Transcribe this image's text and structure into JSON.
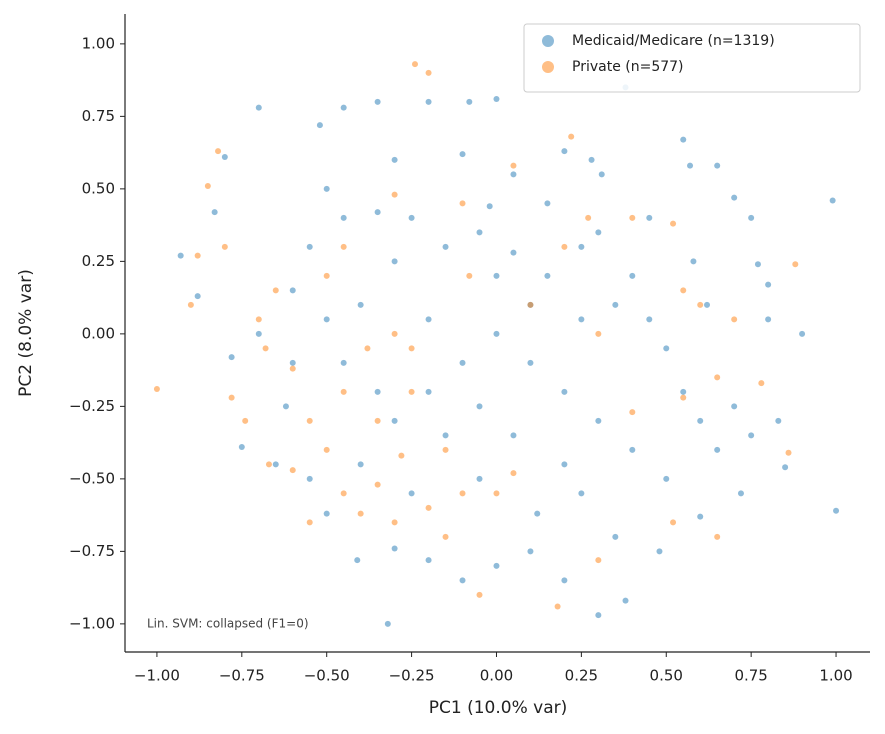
{
  "chart_data": {
    "type": "scatter",
    "xlabel": "PC1 (10.0% var)",
    "ylabel": "PC2 (8.0% var)",
    "annotation": "Lin. SVM: collapsed (F1=0)",
    "xlim": [
      -1.094,
      1.1
    ],
    "ylim": [
      -1.097,
      1.103
    ],
    "xticks": [
      {
        "value": -1,
        "label": "−1.00"
      },
      {
        "value": -0.75,
        "label": "−0.75"
      },
      {
        "value": -0.5,
        "label": "−0.50"
      },
      {
        "value": -0.25,
        "label": "−0.25"
      },
      {
        "value": 0,
        "label": "0.00"
      },
      0.25,
      {
        "value": 0.5,
        "label": "0.50"
      },
      0.75,
      {
        "value": 1,
        "label": "1.00"
      }
    ],
    "yticks": [
      {
        "value": -1,
        "label": "−1.00"
      },
      {
        "value": -0.75,
        "label": "−0.75"
      },
      {
        "value": -0.5,
        "label": "−0.50"
      },
      {
        "value": -0.25,
        "label": "−0.25"
      },
      {
        "value": 0,
        "label": "0.00"
      },
      0.25,
      {
        "value": 0.5,
        "label": "0.50"
      },
      0.75,
      {
        "value": 1,
        "label": "1.00"
      }
    ],
    "legend": "upper right",
    "series": [
      {
        "name": "Medicaid/Medicare (n=1319)",
        "color": "#1f77b4",
        "x": [
          0.99,
          1.0,
          0.85,
          0.77,
          0.8,
          0.75,
          0.7,
          0.65,
          0.57,
          0.55,
          0.38,
          0.31,
          0.28,
          0.2,
          0.0,
          -0.08,
          -0.2,
          -0.35,
          -0.45,
          -0.52,
          -0.7,
          -0.8,
          -0.83,
          -0.88,
          -0.93,
          -0.78,
          -0.75,
          -0.6,
          -0.55,
          -0.45,
          -0.35,
          -0.25,
          -0.15,
          -0.05,
          0.05,
          0.15,
          0.25,
          0.35,
          0.45,
          0.5,
          0.55,
          0.6,
          0.65,
          0.7,
          0.72,
          0.6,
          0.48,
          0.38,
          0.3,
          0.2,
          0.1,
          0.0,
          -0.1,
          -0.2,
          -0.3,
          -0.41,
          -0.5,
          -0.55,
          -0.65,
          -0.4,
          -0.3,
          -0.2,
          -0.1,
          0.0,
          0.1,
          0.2,
          0.3,
          0.4,
          0.15,
          0.05,
          -0.1,
          -0.3,
          -0.5,
          -0.6,
          -0.4,
          -0.2,
          0.1,
          0.3,
          0.45,
          0.58,
          0.62,
          0.8,
          0.9,
          0.75,
          0.83,
          0.5,
          0.25,
          -0.05,
          -0.25,
          -0.35,
          -0.45,
          -0.5,
          -0.15,
          0.05,
          0.2,
          0.35,
          -0.62,
          -0.7,
          0.4,
          0.0,
          -0.3,
          -0.05,
          0.12,
          -0.02,
          0.25,
          -0.32
        ],
        "y": [
          0.46,
          -0.61,
          -0.46,
          0.24,
          0.17,
          -0.35,
          0.47,
          0.58,
          0.58,
          0.67,
          0.85,
          0.55,
          0.6,
          0.63,
          0.81,
          0.8,
          0.8,
          0.8,
          0.78,
          0.72,
          0.78,
          0.61,
          0.42,
          0.13,
          0.27,
          -0.08,
          -0.39,
          -0.1,
          0.3,
          0.4,
          0.42,
          0.4,
          0.3,
          0.35,
          0.28,
          0.2,
          0.3,
          0.1,
          0.05,
          -0.05,
          -0.2,
          -0.3,
          -0.4,
          -0.25,
          -0.55,
          -0.63,
          -0.75,
          -0.92,
          -0.97,
          -0.85,
          -0.75,
          -0.8,
          -0.85,
          -0.78,
          -0.74,
          -0.78,
          -0.62,
          -0.5,
          -0.45,
          -0.45,
          -0.3,
          -0.2,
          -0.1,
          0.0,
          -0.1,
          -0.2,
          -0.3,
          -0.4,
          0.45,
          0.55,
          0.62,
          0.6,
          0.5,
          0.15,
          0.1,
          0.05,
          0.1,
          0.35,
          0.4,
          0.25,
          0.1,
          0.05,
          0.0,
          0.4,
          -0.3,
          -0.5,
          -0.55,
          -0.5,
          -0.55,
          -0.2,
          -0.1,
          0.05,
          -0.35,
          -0.35,
          -0.45,
          -0.7,
          -0.25,
          0.0,
          0.2,
          0.2,
          0.25,
          -0.25,
          -0.62,
          0.44,
          0.05,
          -1.0
        ]
      },
      {
        "name": "Private (n=577)",
        "color": "#ff7f0e",
        "x": [
          -1.0,
          -0.88,
          -0.85,
          -0.82,
          -0.9,
          -0.78,
          -0.74,
          -0.67,
          -0.6,
          -0.7,
          -0.65,
          -0.55,
          -0.5,
          -0.45,
          -0.4,
          -0.3,
          -0.2,
          -0.1,
          0.0,
          -0.35,
          -0.25,
          -0.28,
          -0.15,
          -0.45,
          -0.38,
          -0.3,
          -0.5,
          -0.45,
          -0.3,
          -0.1,
          -0.2,
          -0.24,
          0.05,
          0.22,
          0.27,
          0.4,
          0.52,
          0.55,
          0.6,
          0.7,
          0.88,
          0.86,
          0.78,
          0.65,
          0.55,
          0.4,
          0.65,
          0.52,
          0.3,
          0.18,
          -0.05,
          -0.35,
          -0.15,
          0.05,
          -0.55,
          -0.6,
          0.1,
          -0.08,
          0.2,
          -0.25,
          0.3,
          -0.68,
          -0.8
        ],
        "y": [
          -0.19,
          0.27,
          0.51,
          0.63,
          0.1,
          -0.22,
          -0.3,
          -0.45,
          -0.47,
          0.05,
          0.15,
          -0.3,
          -0.4,
          -0.55,
          -0.62,
          -0.65,
          -0.6,
          -0.55,
          -0.55,
          -0.3,
          -0.2,
          -0.42,
          -0.4,
          -0.2,
          -0.05,
          0.0,
          0.2,
          0.3,
          0.48,
          0.45,
          0.9,
          0.93,
          0.58,
          0.68,
          0.4,
          0.4,
          0.38,
          0.15,
          0.1,
          0.05,
          0.24,
          -0.41,
          -0.17,
          -0.15,
          -0.22,
          -0.27,
          -0.7,
          -0.65,
          -0.78,
          -0.94,
          -0.9,
          -0.52,
          -0.7,
          -0.48,
          -0.65,
          -0.12,
          0.1,
          0.2,
          0.3,
          -0.05,
          0.0,
          -0.05,
          0.3
        ]
      }
    ]
  }
}
